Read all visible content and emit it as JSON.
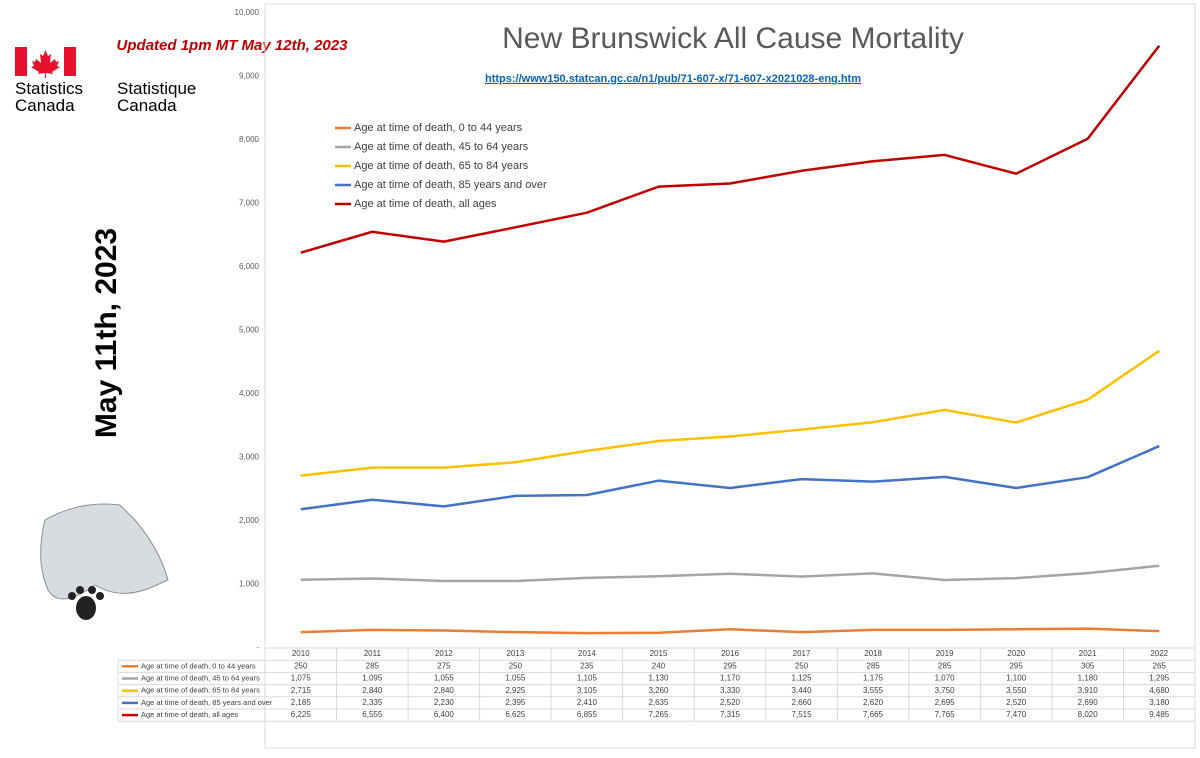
{
  "header": {
    "logo_en": "Statistics\nCanada",
    "logo_fr": "Statistique\nCanada",
    "updated": "Updated 1pm MT May 12th, 2023",
    "side_date": "May 11th, 2023"
  },
  "chart_data": {
    "type": "line",
    "title": "New Brunswick All Cause Mortality",
    "subtitle": "https://www150.statcan.gc.ca/n1/pub/71-607-x/71-607-x2021028-eng.htm",
    "categories": [
      "2010",
      "2011",
      "2012",
      "2013",
      "2014",
      "2015",
      "2016",
      "2017",
      "2018",
      "2019",
      "2020",
      "2021",
      "2022"
    ],
    "series": [
      {
        "name": "Age at time of death, 0 to 44 years",
        "color": "#ed7d31",
        "values": [
          250,
          285,
          275,
          250,
          235,
          240,
          295,
          250,
          285,
          285,
          295,
          305,
          265
        ]
      },
      {
        "name": "Age at time of death, 45 to 64 years",
        "color": "#a5a5a5",
        "values": [
          1075,
          1095,
          1055,
          1055,
          1105,
          1130,
          1170,
          1125,
          1175,
          1070,
          1100,
          1180,
          1295
        ],
        "value_labels": [
          "1,075",
          "1,095",
          "1,055",
          "1,055",
          "1,105",
          "1,130",
          "1,170",
          "1,125",
          "1,175",
          "1,070",
          "1,100",
          "1,180",
          "1,295"
        ]
      },
      {
        "name": "Age at time of death, 65 to 84 years",
        "color": "#ffc000",
        "values": [
          2715,
          2840,
          2840,
          2925,
          3105,
          3260,
          3330,
          3440,
          3555,
          3750,
          3550,
          3910,
          4680
        ],
        "value_labels": [
          "2,715",
          "2,840",
          "2,840",
          "2,925",
          "3,105",
          "3,260",
          "3,330",
          "3,440",
          "3,555",
          "3,750",
          "3,550",
          "3,910",
          "4,680"
        ]
      },
      {
        "name": "Age at time of death, 85 years and over",
        "color": "#4472c4",
        "values": [
          2185,
          2335,
          2230,
          2395,
          2410,
          2635,
          2520,
          2660,
          2620,
          2695,
          2520,
          2690,
          3180
        ],
        "value_labels": [
          "2,185",
          "2,335",
          "2,230",
          "2,395",
          "2,410",
          "2,635",
          "2,520",
          "2,660",
          "2,620",
          "2,695",
          "2,520",
          "2,690",
          "3,180"
        ]
      },
      {
        "name": "Age at time of death, all ages",
        "color": "#c00000",
        "values": [
          6225,
          6555,
          6400,
          6625,
          6855,
          7265,
          7315,
          7515,
          7665,
          7765,
          7470,
          8020,
          9485
        ],
        "value_labels": [
          "6,225",
          "6,555",
          "6,400",
          "6,625",
          "6,855",
          "7,265",
          "7,315",
          "7,515",
          "7,665",
          "7,765",
          "7,470",
          "8,020",
          "9,485"
        ]
      }
    ],
    "ylim": [
      0,
      10000
    ],
    "yticks": [
      {
        "value": 0,
        "label": "-"
      },
      {
        "value": 1000,
        "label": "1,000"
      },
      {
        "value": 2000,
        "label": "2,000"
      },
      {
        "value": 3000,
        "label": "3,000"
      },
      {
        "value": 4000,
        "label": "4,000"
      },
      {
        "value": 5000,
        "label": "5,000"
      },
      {
        "value": 6000,
        "label": "6,000"
      },
      {
        "value": 7000,
        "label": "7,000"
      },
      {
        "value": 8000,
        "label": "8,000"
      },
      {
        "value": 9000,
        "label": "9,000"
      },
      {
        "value": 10000,
        "label": "10,000"
      }
    ],
    "grid": false
  }
}
